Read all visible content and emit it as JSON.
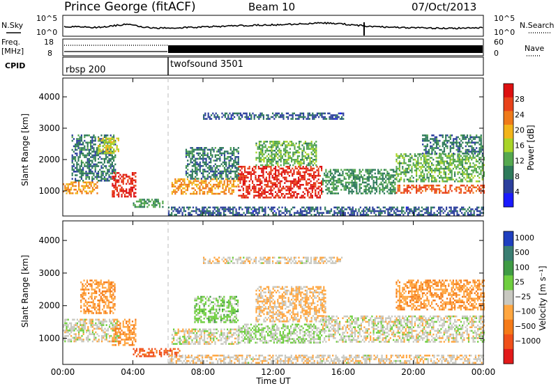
{
  "header": {
    "title": "Prince George (fitACF)",
    "beam": "Beam 10",
    "date": "07/Oct/2013"
  },
  "strip_labels": {
    "nsky": "N.Sky",
    "nsearch": "N.Search",
    "freq_1": "Freq.",
    "freq_2": "[MHz]",
    "nave": "Nave",
    "cpid": "CPID"
  },
  "strip_ticks": {
    "noise_left": [
      "10^5",
      "10^0"
    ],
    "noise_right": [
      "10^5",
      "10^0"
    ],
    "freq_left": [
      "18",
      "8"
    ],
    "nave_right": [
      "60",
      "0"
    ]
  },
  "cpid_segments": [
    {
      "label": "rbsp 200",
      "start_h": 0,
      "end_h": 6
    },
    {
      "label": "twofsound 3501",
      "start_h": 6,
      "end_h": 24
    }
  ],
  "colors": {
    "power": [
      "#1a1aff",
      "#2b3f9c",
      "#2e7a5a",
      "#55a84f",
      "#a8d428",
      "#f2b41a",
      "#ef7a1a",
      "#e8421a",
      "#dd1010"
    ],
    "velocity": [
      "#1f3fbf",
      "#3a7e72",
      "#3f9b44",
      "#6fce3f",
      "#c8c8c0",
      "#ffa640",
      "#f57a18",
      "#f0501a",
      "#e21a1a"
    ]
  },
  "chart_data": [
    {
      "type": "heatmap",
      "name": "power",
      "xlabel": "Time UT",
      "ylabel": "Slant Range [km]",
      "xlim": [
        0,
        24
      ],
      "ylim": [
        200,
        4600
      ],
      "x_ticks": [
        0,
        4,
        8,
        12,
        16,
        20,
        24
      ],
      "x_tick_labels": [
        "00:00",
        "04:00",
        "08:00",
        "12:00",
        "16:00",
        "20:00",
        "00:00"
      ],
      "y_ticks": [
        1000,
        2000,
        3000,
        4000
      ],
      "y_tick_labels": [
        "1000",
        "2000",
        "3000",
        "4000"
      ],
      "colorbar_label": "Power [dB]",
      "colorbar_ticks": [
        "28",
        "24",
        "20",
        "16",
        "12",
        "8",
        "4"
      ],
      "colorbar_range": [
        0,
        30
      ],
      "regions": [
        {
          "t0": 0.0,
          "t1": 2.0,
          "r0": 900,
          "r1": 1300,
          "value": 20
        },
        {
          "t0": 0.5,
          "t1": 3.0,
          "r0": 1300,
          "r1": 2800,
          "value": 8
        },
        {
          "t0": 2.0,
          "t1": 3.2,
          "r0": 2200,
          "r1": 2700,
          "value": 16
        },
        {
          "t0": 2.8,
          "t1": 4.2,
          "r0": 800,
          "r1": 1600,
          "value": 27
        },
        {
          "t0": 4.0,
          "t1": 5.8,
          "r0": 500,
          "r1": 750,
          "value": 10
        },
        {
          "t0": 6.2,
          "t1": 10.0,
          "r0": 900,
          "r1": 1400,
          "value": 20
        },
        {
          "t0": 7.0,
          "t1": 10.0,
          "r0": 1400,
          "r1": 2400,
          "value": 8
        },
        {
          "t0": 10.0,
          "t1": 14.8,
          "r0": 800,
          "r1": 1800,
          "value": 27
        },
        {
          "t0": 11.0,
          "t1": 14.5,
          "r0": 1800,
          "r1": 2600,
          "value": 12
        },
        {
          "t0": 14.8,
          "t1": 19.0,
          "r0": 900,
          "r1": 1700,
          "value": 10
        },
        {
          "t0": 19.0,
          "t1": 24.0,
          "r0": 950,
          "r1": 1200,
          "value": 24
        },
        {
          "t0": 19.0,
          "t1": 24.0,
          "r0": 1300,
          "r1": 2200,
          "value": 12
        },
        {
          "t0": 20.5,
          "t1": 24.0,
          "r0": 2200,
          "r1": 2800,
          "value": 8
        },
        {
          "t0": 6.0,
          "t1": 24.0,
          "r0": 250,
          "r1": 500,
          "value": 6
        },
        {
          "t0": 8.0,
          "t1": 16.0,
          "r0": 3300,
          "r1": 3500,
          "value": 6
        }
      ]
    },
    {
      "type": "heatmap",
      "name": "velocity",
      "xlabel": "Time UT",
      "ylabel": "Slant Range [km]",
      "xlim": [
        0,
        24
      ],
      "ylim": [
        200,
        4600
      ],
      "x_ticks": [
        0,
        4,
        8,
        12,
        16,
        20,
        24
      ],
      "x_tick_labels": [
        "00:00",
        "04:00",
        "08:00",
        "12:00",
        "16:00",
        "20:00",
        "00:00"
      ],
      "y_ticks": [
        1000,
        2000,
        3000,
        4000
      ],
      "y_tick_labels": [
        "1000",
        "2000",
        "3000",
        "4000"
      ],
      "colorbar_label": "Velocity [m s⁻¹]",
      "colorbar_ticks": [
        "1000",
        "500",
        "100",
        "25",
        "−25",
        "−100",
        "−500",
        "−1000"
      ],
      "colorbar_range": [
        -1000,
        1000
      ],
      "regions": [
        {
          "t0": 0.0,
          "t1": 3.2,
          "r0": 900,
          "r1": 1600,
          "value": 0
        },
        {
          "t0": 1.0,
          "t1": 3.0,
          "r0": 1800,
          "r1": 2800,
          "value": -300
        },
        {
          "t0": 2.8,
          "t1": 4.2,
          "r0": 800,
          "r1": 1600,
          "value": -300
        },
        {
          "t0": 4.0,
          "t1": 6.8,
          "r0": 450,
          "r1": 700,
          "value": -600
        },
        {
          "t0": 6.2,
          "t1": 10.0,
          "r0": 850,
          "r1": 1300,
          "value": 0
        },
        {
          "t0": 7.5,
          "t1": 10.0,
          "r0": 1500,
          "r1": 2300,
          "value": 200
        },
        {
          "t0": 10.0,
          "t1": 14.8,
          "r0": 850,
          "r1": 1450,
          "value": 120
        },
        {
          "t0": 11.0,
          "t1": 15.0,
          "r0": 1500,
          "r1": 2600,
          "value": -150
        },
        {
          "t0": 14.8,
          "t1": 24.0,
          "r0": 900,
          "r1": 1700,
          "value": 0
        },
        {
          "t0": 19.0,
          "t1": 24.0,
          "r0": 1900,
          "r1": 2800,
          "value": -300
        },
        {
          "t0": 6.0,
          "t1": 24.0,
          "r0": 250,
          "r1": 500,
          "value": -60
        },
        {
          "t0": 8.0,
          "t1": 16.0,
          "r0": 3300,
          "r1": 3500,
          "value": -50
        }
      ]
    }
  ]
}
